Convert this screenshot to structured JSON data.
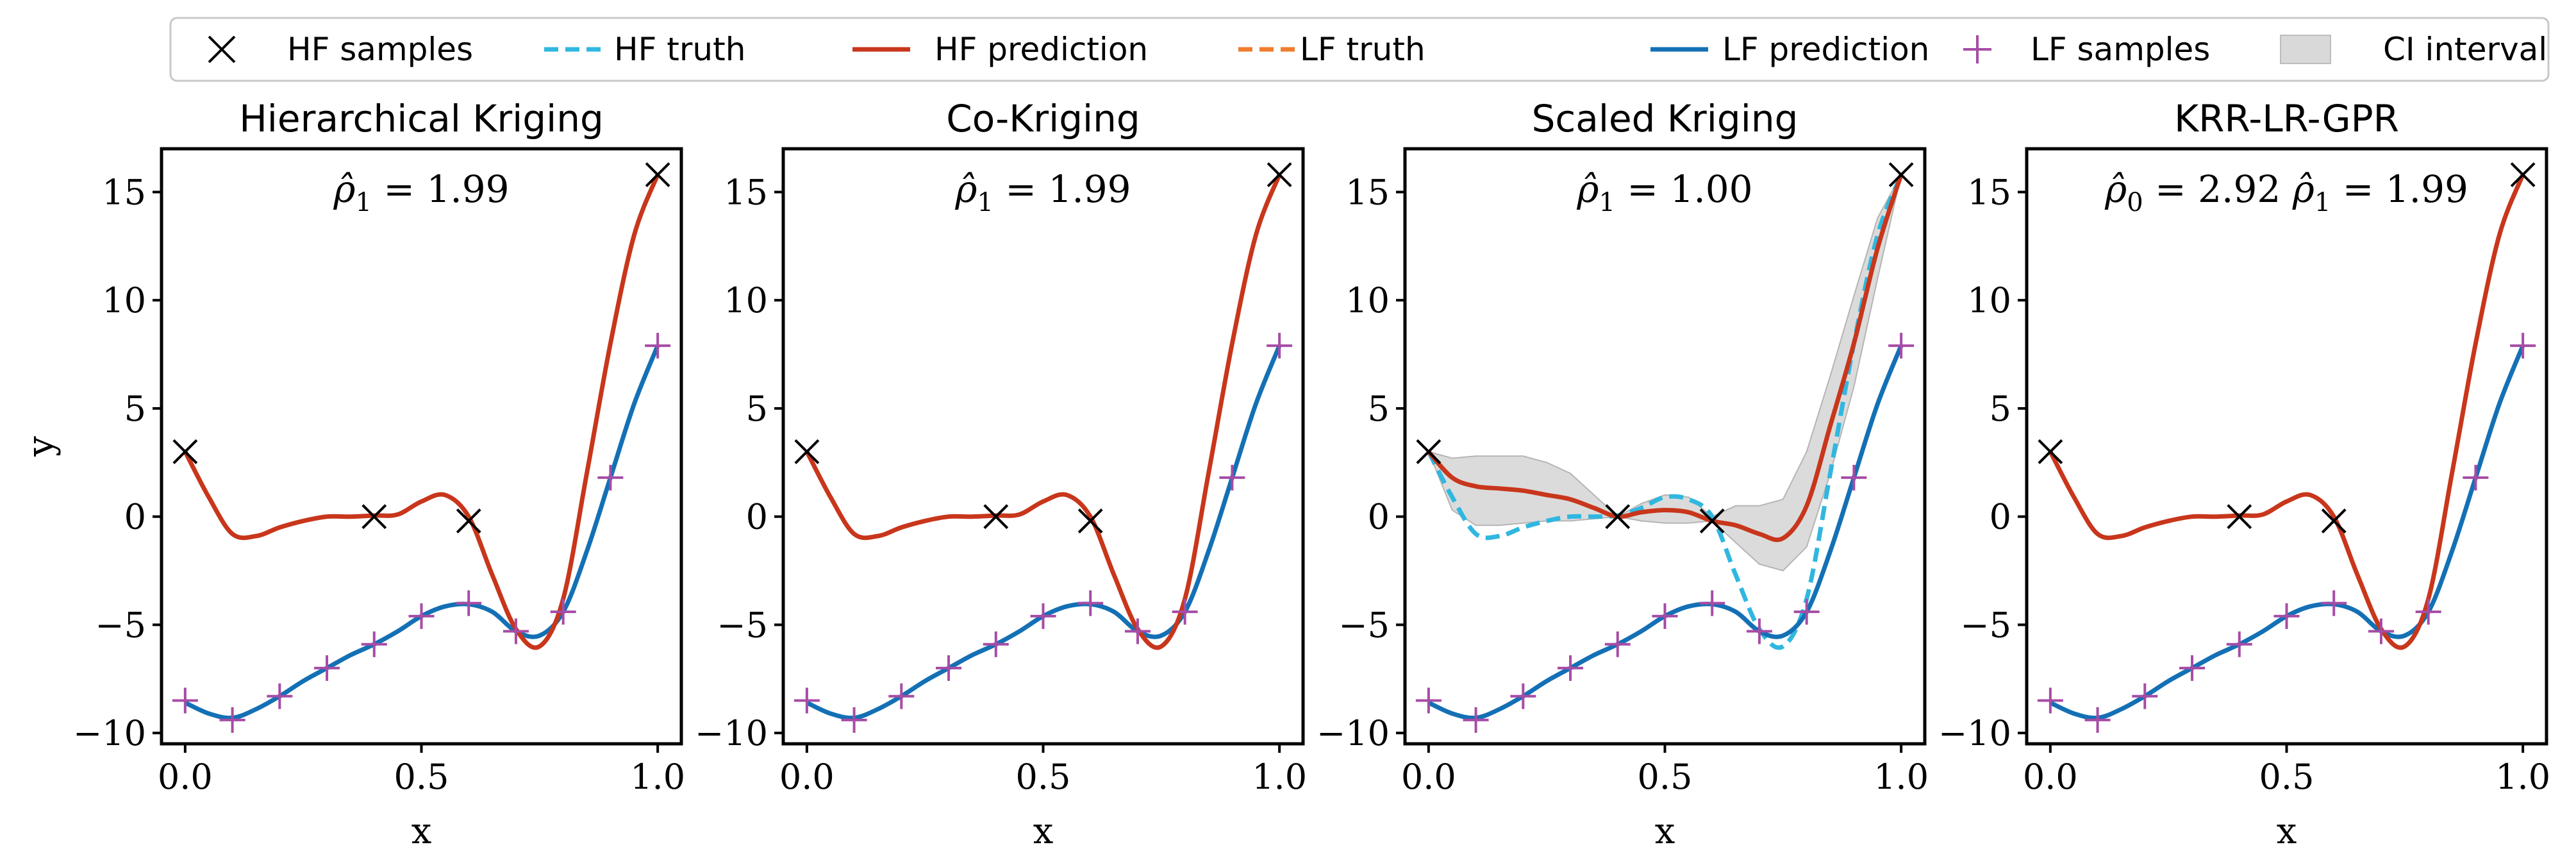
{
  "legend": {
    "entries": [
      {
        "label": "HF samples",
        "kind": "marker-x",
        "color": "#000000"
      },
      {
        "label": "HF truth",
        "kind": "dashed",
        "color": "#30b7e0"
      },
      {
        "label": "HF prediction",
        "kind": "solid",
        "color": "#c8361b"
      },
      {
        "label": "LF truth",
        "kind": "dashed",
        "color": "#ee7d2f"
      },
      {
        "label": "LF prediction",
        "kind": "solid",
        "color": "#1470b5"
      },
      {
        "label": "LF samples",
        "kind": "marker-plus",
        "color": "#a64ca6"
      },
      {
        "label": "CI interval",
        "kind": "patch",
        "color": "#d9d9d9"
      }
    ]
  },
  "chart_data": [
    {
      "type": "line",
      "title": "Hierarchical Kriging",
      "annotation": "$\\hat{\\rho}_1$ = 1.99",
      "annotation_parts": [
        {
          "base": "ρ̂",
          "sub": "1",
          "value": " = 1.99"
        }
      ],
      "xlabel": "x",
      "ylabel": "y",
      "xlim": [
        -0.05,
        1.05
      ],
      "ylim": [
        -10.5,
        17.0
      ],
      "xticks": [
        0.0,
        0.5,
        1.0
      ],
      "xtick_labels": [
        "0.0",
        "0.5",
        "1.0"
      ],
      "yticks": [
        -10,
        -5,
        0,
        5,
        10,
        15
      ],
      "ytick_labels": [
        "−10",
        "−5",
        "0",
        "5",
        "10",
        "15"
      ],
      "grid": false,
      "series": [
        {
          "name": "HF prediction",
          "style": "solid",
          "x": [
            0,
            0.05,
            0.1,
            0.15,
            0.2,
            0.25,
            0.3,
            0.35,
            0.4,
            0.45,
            0.5,
            0.55,
            0.6,
            0.65,
            0.7,
            0.75,
            0.8,
            0.85,
            0.9,
            0.95,
            1.0
          ],
          "y": [
            3.0,
            0.9,
            -0.8,
            -0.9,
            -0.5,
            -0.2,
            0.0,
            0.0,
            0.05,
            0.1,
            0.7,
            1.0,
            0.0,
            -2.7,
            -5.2,
            -6.0,
            -3.8,
            2.0,
            8.0,
            13.0,
            15.8
          ]
        },
        {
          "name": "LF prediction",
          "style": "solid",
          "x": [
            0,
            0.05,
            0.1,
            0.15,
            0.2,
            0.25,
            0.3,
            0.35,
            0.4,
            0.45,
            0.5,
            0.55,
            0.6,
            0.65,
            0.7,
            0.75,
            0.8,
            0.85,
            0.9,
            0.95,
            1.0
          ],
          "y": [
            -8.6,
            -9.1,
            -9.3,
            -8.9,
            -8.3,
            -7.6,
            -7.0,
            -6.4,
            -5.9,
            -5.3,
            -4.6,
            -4.15,
            -4.05,
            -4.4,
            -5.3,
            -5.5,
            -4.4,
            -1.6,
            1.8,
            5.2,
            7.9
          ]
        },
        {
          "name": "HF samples",
          "style": "marker-x",
          "x": [
            0.0,
            0.4,
            0.6,
            1.0
          ],
          "y": [
            3.0,
            0.0,
            -0.2,
            15.8
          ]
        },
        {
          "name": "LF samples",
          "style": "marker-plus",
          "x": [
            0.0,
            0.1,
            0.2,
            0.3,
            0.4,
            0.5,
            0.6,
            0.7,
            0.8,
            0.9,
            1.0
          ],
          "y": [
            -8.5,
            -9.4,
            -8.3,
            -7.0,
            -5.9,
            -4.6,
            -4.0,
            -5.3,
            -4.4,
            1.8,
            7.9
          ]
        }
      ]
    },
    {
      "type": "line",
      "title": "Co-Kriging",
      "annotation": "$\\hat{\\rho}_1$ = 1.99",
      "annotation_parts": [
        {
          "base": "ρ̂",
          "sub": "1",
          "value": " = 1.99"
        }
      ],
      "xlabel": "x",
      "ylabel": "",
      "xlim": [
        -0.05,
        1.05
      ],
      "ylim": [
        -10.5,
        17.0
      ],
      "xticks": [
        0.0,
        0.5,
        1.0
      ],
      "xtick_labels": [
        "0.0",
        "0.5",
        "1.0"
      ],
      "yticks": [
        -10,
        -5,
        0,
        5,
        10,
        15
      ],
      "ytick_labels": [
        "−10",
        "−5",
        "0",
        "5",
        "10",
        "15"
      ],
      "grid": false,
      "series": [
        {
          "name": "HF prediction",
          "style": "solid",
          "x": [
            0,
            0.05,
            0.1,
            0.15,
            0.2,
            0.25,
            0.3,
            0.35,
            0.4,
            0.45,
            0.5,
            0.55,
            0.6,
            0.65,
            0.7,
            0.75,
            0.8,
            0.85,
            0.9,
            0.95,
            1.0
          ],
          "y": [
            3.0,
            0.9,
            -0.8,
            -0.9,
            -0.5,
            -0.2,
            0.0,
            0.0,
            0.05,
            0.1,
            0.7,
            1.0,
            0.0,
            -2.7,
            -5.2,
            -6.0,
            -3.8,
            2.0,
            8.0,
            13.0,
            15.8
          ]
        },
        {
          "name": "LF prediction",
          "style": "solid",
          "x": [
            0,
            0.05,
            0.1,
            0.15,
            0.2,
            0.25,
            0.3,
            0.35,
            0.4,
            0.45,
            0.5,
            0.55,
            0.6,
            0.65,
            0.7,
            0.75,
            0.8,
            0.85,
            0.9,
            0.95,
            1.0
          ],
          "y": [
            -8.6,
            -9.1,
            -9.3,
            -8.9,
            -8.3,
            -7.6,
            -7.0,
            -6.4,
            -5.9,
            -5.3,
            -4.6,
            -4.15,
            -4.05,
            -4.4,
            -5.3,
            -5.5,
            -4.4,
            -1.6,
            1.8,
            5.2,
            7.9
          ]
        },
        {
          "name": "HF samples",
          "style": "marker-x",
          "x": [
            0.0,
            0.4,
            0.6,
            1.0
          ],
          "y": [
            3.0,
            0.0,
            -0.2,
            15.8
          ]
        },
        {
          "name": "LF samples",
          "style": "marker-plus",
          "x": [
            0.0,
            0.1,
            0.2,
            0.3,
            0.4,
            0.5,
            0.6,
            0.7,
            0.8,
            0.9,
            1.0
          ],
          "y": [
            -8.5,
            -9.4,
            -8.3,
            -7.0,
            -5.9,
            -4.6,
            -4.0,
            -5.3,
            -4.4,
            1.8,
            7.9
          ]
        }
      ]
    },
    {
      "type": "line",
      "title": "Scaled Kriging",
      "annotation": "$\\hat{\\rho}_1$ = 1.00",
      "annotation_parts": [
        {
          "base": "ρ̂",
          "sub": "1",
          "value": " = 1.00"
        }
      ],
      "xlabel": "x",
      "ylabel": "",
      "xlim": [
        -0.05,
        1.05
      ],
      "ylim": [
        -10.5,
        17.0
      ],
      "xticks": [
        0.0,
        0.5,
        1.0
      ],
      "xtick_labels": [
        "0.0",
        "0.5",
        "1.0"
      ],
      "yticks": [
        -10,
        -5,
        0,
        5,
        10,
        15
      ],
      "ytick_labels": [
        "−10",
        "−5",
        "0",
        "5",
        "10",
        "15"
      ],
      "grid": false,
      "ci_band": {
        "x": [
          0,
          0.05,
          0.1,
          0.15,
          0.2,
          0.25,
          0.3,
          0.35,
          0.4,
          0.45,
          0.5,
          0.55,
          0.6,
          0.65,
          0.7,
          0.75,
          0.8,
          0.85,
          0.9,
          0.95,
          1.0
        ],
        "lower": [
          3.0,
          0.3,
          -0.4,
          -0.4,
          -0.3,
          -0.2,
          -0.2,
          -0.1,
          0.0,
          -0.2,
          -0.3,
          -0.3,
          -0.2,
          -1.2,
          -2.2,
          -2.5,
          -1.4,
          2.0,
          6.0,
          11.0,
          15.8
        ],
        "upper": [
          3.0,
          2.7,
          2.8,
          2.8,
          2.8,
          2.5,
          2.0,
          1.0,
          0.0,
          0.6,
          1.0,
          0.9,
          0.0,
          0.5,
          0.5,
          0.8,
          3.0,
          6.5,
          10.2,
          13.8,
          15.8
        ]
      },
      "series": [
        {
          "name": "HF prediction",
          "style": "solid",
          "x": [
            0,
            0.05,
            0.1,
            0.15,
            0.2,
            0.25,
            0.3,
            0.35,
            0.4,
            0.45,
            0.5,
            0.55,
            0.6,
            0.65,
            0.7,
            0.75,
            0.8,
            0.85,
            0.9,
            0.95,
            1.0
          ],
          "y": [
            3.0,
            1.8,
            1.4,
            1.3,
            1.2,
            1.0,
            0.8,
            0.4,
            0.0,
            0.2,
            0.3,
            0.2,
            -0.2,
            -0.4,
            -0.8,
            -1.0,
            0.5,
            4.2,
            8.0,
            12.4,
            15.8
          ]
        },
        {
          "name": "HF truth",
          "style": "dashed",
          "x": [
            0,
            0.05,
            0.1,
            0.15,
            0.2,
            0.25,
            0.3,
            0.35,
            0.4,
            0.45,
            0.5,
            0.55,
            0.6,
            0.65,
            0.7,
            0.75,
            0.8,
            0.85,
            0.9,
            0.95,
            1.0
          ],
          "y": [
            3.0,
            0.9,
            -0.8,
            -0.9,
            -0.5,
            -0.2,
            0.0,
            0.0,
            0.05,
            0.4,
            0.9,
            0.8,
            0.0,
            -2.7,
            -5.2,
            -6.0,
            -3.8,
            2.0,
            8.0,
            13.0,
            15.8
          ]
        },
        {
          "name": "LF prediction",
          "style": "solid",
          "x": [
            0,
            0.05,
            0.1,
            0.15,
            0.2,
            0.25,
            0.3,
            0.35,
            0.4,
            0.45,
            0.5,
            0.55,
            0.6,
            0.65,
            0.7,
            0.75,
            0.8,
            0.85,
            0.9,
            0.95,
            1.0
          ],
          "y": [
            -8.6,
            -9.1,
            -9.3,
            -8.9,
            -8.3,
            -7.6,
            -7.0,
            -6.4,
            -5.9,
            -5.3,
            -4.6,
            -4.15,
            -4.05,
            -4.4,
            -5.3,
            -5.5,
            -4.4,
            -1.6,
            1.8,
            5.2,
            7.9
          ]
        },
        {
          "name": "HF samples",
          "style": "marker-x",
          "x": [
            0.0,
            0.4,
            0.6,
            1.0
          ],
          "y": [
            3.0,
            0.0,
            -0.2,
            15.8
          ]
        },
        {
          "name": "LF samples",
          "style": "marker-plus",
          "x": [
            0.0,
            0.1,
            0.2,
            0.3,
            0.4,
            0.5,
            0.6,
            0.7,
            0.8,
            0.9,
            1.0
          ],
          "y": [
            -8.5,
            -9.4,
            -8.3,
            -7.0,
            -5.9,
            -4.6,
            -4.0,
            -5.3,
            -4.4,
            1.8,
            7.9
          ]
        }
      ]
    },
    {
      "type": "line",
      "title": "KRR-LR-GPR",
      "annotation": "$\\hat{\\rho}_0$ = 2.92 $\\hat{\\rho}_1$ = 1.99",
      "annotation_parts": [
        {
          "base": "ρ̂",
          "sub": "0",
          "value": " = 2.92 "
        },
        {
          "base": "ρ̂",
          "sub": "1",
          "value": " = 1.99"
        }
      ],
      "xlabel": "x",
      "ylabel": "",
      "xlim": [
        -0.05,
        1.05
      ],
      "ylim": [
        -10.5,
        17.0
      ],
      "xticks": [
        0.0,
        0.5,
        1.0
      ],
      "xtick_labels": [
        "0.0",
        "0.5",
        "1.0"
      ],
      "yticks": [
        -10,
        -5,
        0,
        5,
        10,
        15
      ],
      "ytick_labels": [
        "−10",
        "−5",
        "0",
        "5",
        "10",
        "15"
      ],
      "grid": false,
      "series": [
        {
          "name": "HF prediction",
          "style": "solid",
          "x": [
            0,
            0.05,
            0.1,
            0.15,
            0.2,
            0.25,
            0.3,
            0.35,
            0.4,
            0.45,
            0.5,
            0.55,
            0.6,
            0.65,
            0.7,
            0.75,
            0.8,
            0.85,
            0.9,
            0.95,
            1.0
          ],
          "y": [
            3.0,
            0.9,
            -0.8,
            -0.9,
            -0.5,
            -0.2,
            0.0,
            0.0,
            0.05,
            0.1,
            0.7,
            1.0,
            0.0,
            -2.7,
            -5.2,
            -6.0,
            -3.8,
            2.0,
            8.0,
            13.0,
            15.8
          ]
        },
        {
          "name": "LF prediction",
          "style": "solid",
          "x": [
            0,
            0.05,
            0.1,
            0.15,
            0.2,
            0.25,
            0.3,
            0.35,
            0.4,
            0.45,
            0.5,
            0.55,
            0.6,
            0.65,
            0.7,
            0.75,
            0.8,
            0.85,
            0.9,
            0.95,
            1.0
          ],
          "y": [
            -8.6,
            -9.1,
            -9.3,
            -8.9,
            -8.3,
            -7.6,
            -7.0,
            -6.4,
            -5.9,
            -5.3,
            -4.6,
            -4.15,
            -4.05,
            -4.4,
            -5.3,
            -5.5,
            -4.4,
            -1.6,
            1.8,
            5.2,
            7.9
          ]
        },
        {
          "name": "HF samples",
          "style": "marker-x",
          "x": [
            0.0,
            0.4,
            0.6,
            1.0
          ],
          "y": [
            3.0,
            0.0,
            -0.2,
            15.8
          ]
        },
        {
          "name": "LF samples",
          "style": "marker-plus",
          "x": [
            0.0,
            0.1,
            0.2,
            0.3,
            0.4,
            0.5,
            0.6,
            0.7,
            0.8,
            0.9,
            1.0
          ],
          "y": [
            -8.5,
            -9.4,
            -8.3,
            -7.0,
            -5.9,
            -4.6,
            -4.0,
            -5.3,
            -4.4,
            1.8,
            7.9
          ]
        }
      ]
    }
  ],
  "series_colors": {
    "HF samples": "#000000",
    "HF truth": "#30b7e0",
    "HF prediction": "#c8361b",
    "LF truth": "#ee7d2f",
    "LF prediction": "#1470b5",
    "LF samples": "#a64ca6",
    "CI interval": "#d9d9d9"
  }
}
